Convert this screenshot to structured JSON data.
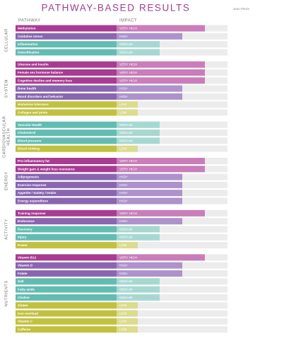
{
  "header": {
    "title": "PATHWAY-BASED RESULTS",
    "name": "Jean Pierre"
  },
  "columns": [
    "PATHWAY",
    "IMPACT"
  ],
  "levels": [
    {
      "label": "VERY HIGH",
      "color": "#a83c92",
      "light": "#c97dba"
    },
    {
      "label": "HIGH",
      "color": "#8a65b0",
      "light": "#ad92cc"
    },
    {
      "label": "MEDIUM",
      "color": "#63bcb1",
      "light": "#a6d8d1"
    },
    {
      "label": "LOW",
      "color": "#c2c13f",
      "light": "#dcdb8e"
    }
  ],
  "groups": [
    {
      "label": [
        "CELLULAR"
      ],
      "rows": [
        {
          "pathway": "Methylation",
          "level": 0
        },
        {
          "pathway": "Oxidative stress",
          "level": 1
        },
        {
          "pathway": "Inflammation",
          "level": 2
        },
        {
          "pathway": "Detoxification",
          "level": 2
        }
      ]
    },
    {
      "label": [
        "SYSTEM"
      ],
      "rows": [
        {
          "pathway": "Glucose and insulin",
          "level": 0
        },
        {
          "pathway": "Female sex hormone balance",
          "level": 0
        },
        {
          "pathway": "Cognitive decline and memory loss",
          "level": 0
        },
        {
          "pathway": "Bone health",
          "level": 1
        },
        {
          "pathway": "Mood disorders and behavior",
          "level": 1
        },
        {
          "pathway": "Histamine tolerance",
          "level": 3
        },
        {
          "pathway": "Collagen and joints",
          "level": 3
        }
      ]
    },
    {
      "label": [
        "CARDIOVASCULAR",
        "HEALTH"
      ],
      "rows": [
        {
          "pathway": "Vascular Health",
          "level": 2
        },
        {
          "pathway": "Cholesterol",
          "level": 2
        },
        {
          "pathway": "Blood pressure",
          "level": 2
        },
        {
          "pathway": "Blood clotting",
          "level": 3
        }
      ]
    },
    {
      "label": [
        "ENERGY"
      ],
      "rows": [
        {
          "pathway": "Pro-inflammatory fat",
          "level": 0
        },
        {
          "pathway": "Weight gain & weight loss resistance",
          "level": 0
        },
        {
          "pathway": "Adipogenesis",
          "level": 1
        },
        {
          "pathway": "Exercise response",
          "level": 1
        },
        {
          "pathway": "Appetite / Satiety / Intake",
          "level": 1
        },
        {
          "pathway": "Energy expenditure",
          "level": 1
        }
      ]
    },
    {
      "label": [
        "ACTIVITY"
      ],
      "rows": [
        {
          "pathway": "Training response",
          "level": 0
        },
        {
          "pathway": "Endurance",
          "level": 1
        },
        {
          "pathway": "Recovery",
          "level": 2
        },
        {
          "pathway": "Injury",
          "level": 2
        },
        {
          "pathway": "Power",
          "level": 3
        }
      ]
    },
    {
      "label": [
        "NUTRIENTS"
      ],
      "rows": [
        {
          "pathway": "Vitamin B12",
          "level": 0
        },
        {
          "pathway": "Vitamin D",
          "level": 1
        },
        {
          "pathway": "Folate",
          "level": 1
        },
        {
          "pathway": "Salt",
          "level": 2
        },
        {
          "pathway": "Fatty acids",
          "level": 2
        },
        {
          "pathway": "Choline",
          "level": 2
        },
        {
          "pathway": "Gluten",
          "level": 3
        },
        {
          "pathway": "Iron overload",
          "level": 3
        },
        {
          "pathway": "Vitamin C",
          "level": 3
        },
        {
          "pathway": "Caffeine",
          "level": 3
        }
      ]
    }
  ]
}
